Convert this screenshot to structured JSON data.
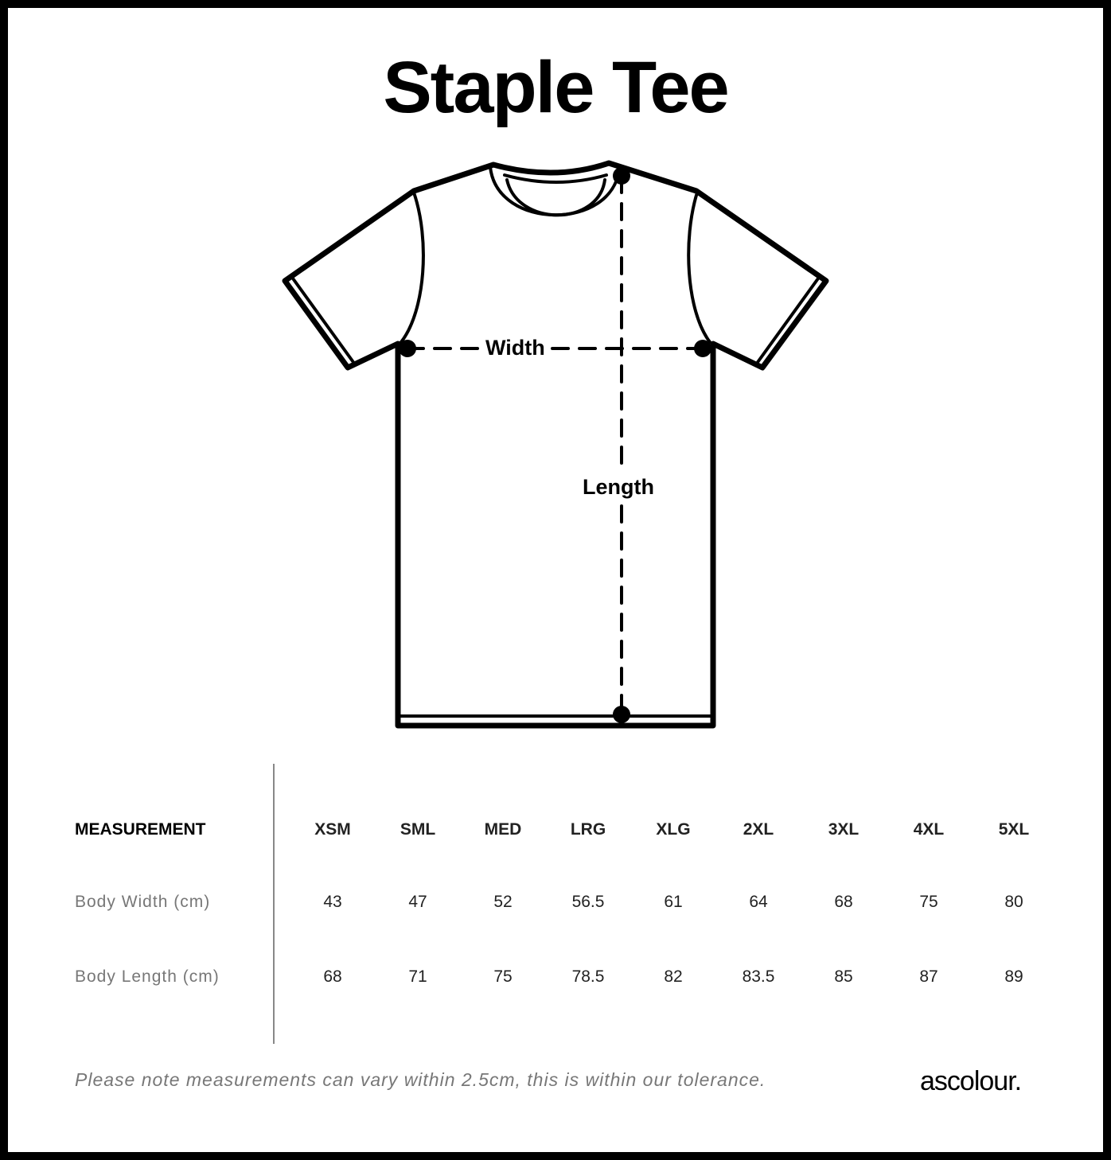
{
  "title": "Staple Tee",
  "diagram": {
    "width_label": "Width",
    "length_label": "Length"
  },
  "table": {
    "header_label": "MEASUREMENT",
    "sizes": [
      "XSM",
      "SML",
      "MED",
      "LRG",
      "XLG",
      "2XL",
      "3XL",
      "4XL",
      "5XL"
    ],
    "rows": [
      {
        "label": "Body Width (cm)",
        "values": [
          "43",
          "47",
          "52",
          "56.5",
          "61",
          "64",
          "68",
          "75",
          "80"
        ]
      },
      {
        "label": "Body Length (cm)",
        "values": [
          "68",
          "71",
          "75",
          "78.5",
          "82",
          "83.5",
          "85",
          "87",
          "89"
        ]
      }
    ]
  },
  "footer": {
    "note": "Please note measurements can vary within 2.5cm, this is within our tolerance.",
    "logo": "ascolour."
  }
}
